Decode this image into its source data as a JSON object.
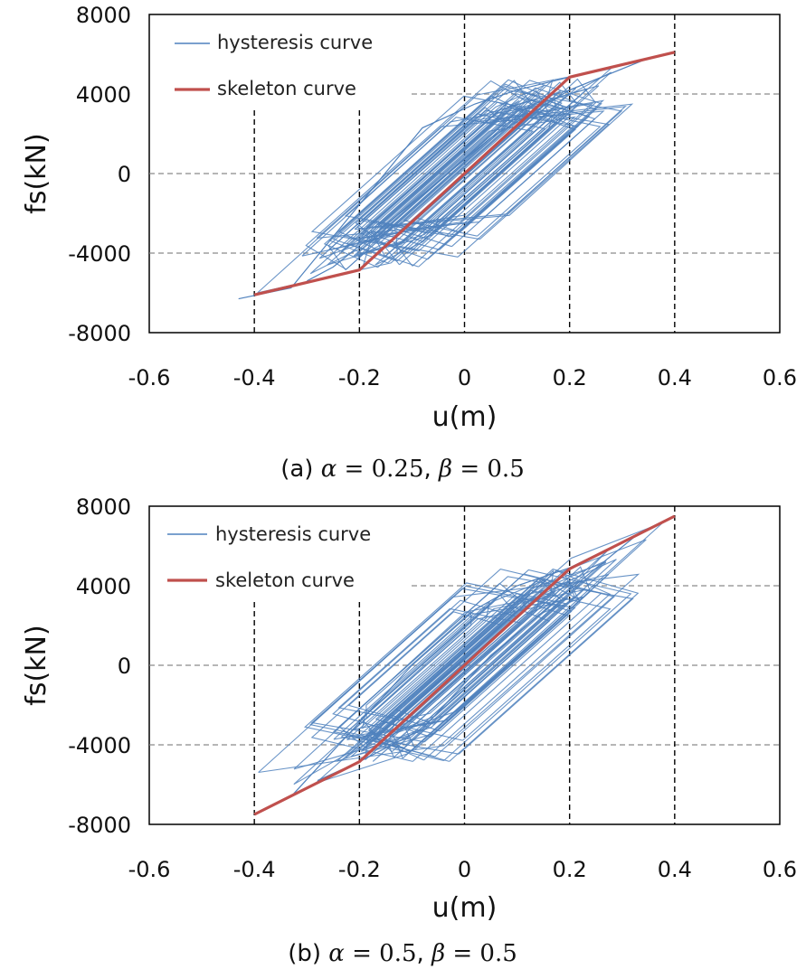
{
  "chart_data": [
    {
      "type": "line",
      "panel": "a",
      "xlabel": "u(m)",
      "ylabel": "fs(kN)",
      "xlim": [
        -0.6,
        0.6
      ],
      "ylim": [
        -8000,
        8000
      ],
      "xticks": [
        "-0.6",
        "-0.4",
        "-0.2",
        "0",
        "0.2",
        "0.4",
        "0.6"
      ],
      "yticks": [
        "8000",
        "4000",
        "0",
        "-4000",
        "-8000"
      ],
      "legend": [
        "hysteresis curve",
        "skeleton curve"
      ],
      "caption": {
        "label": "(a)",
        "alpha": "0.25",
        "beta": "0.5"
      },
      "series": [
        {
          "name": "skeleton curve",
          "color": "#c0504d",
          "points": [
            [
              -0.4,
              -6100
            ],
            [
              -0.2,
              -4850
            ],
            [
              0,
              0
            ],
            [
              0.2,
              4850
            ],
            [
              0.4,
              6100
            ]
          ]
        },
        {
          "name": "hysteresis curve",
          "color": "#4f81bd",
          "points": [
            [
              -0.43,
              -6300
            ],
            [
              -0.33,
              -5750
            ],
            [
              -0.08,
              2300
            ],
            [
              0.02,
              3500
            ],
            [
              0.1,
              4200
            ],
            [
              0.2,
              4850
            ],
            [
              0.35,
              5800
            ],
            [
              0.2,
              4200
            ],
            [
              0.05,
              1800
            ],
            [
              -0.1,
              -1500
            ],
            [
              -0.25,
              -4700
            ],
            [
              -0.3,
              -5400
            ]
          ]
        }
      ]
    },
    {
      "type": "line",
      "panel": "b",
      "xlabel": "u(m)",
      "ylabel": "fs(kN)",
      "xlim": [
        -0.6,
        0.6
      ],
      "ylim": [
        -8000,
        8000
      ],
      "xticks": [
        "-0.6",
        "-0.4",
        "-0.2",
        "0",
        "0.2",
        "0.4",
        "0.6"
      ],
      "yticks": [
        "8000",
        "4000",
        "0",
        "-4000",
        "-8000"
      ],
      "legend": [
        "hysteresis curve",
        "skeleton curve"
      ],
      "caption": {
        "label": "(b)",
        "alpha": "0.5",
        "beta": "0.5"
      },
      "series": [
        {
          "name": "skeleton curve",
          "color": "#c0504d",
          "points": [
            [
              -0.4,
              -7500
            ],
            [
              -0.2,
              -4850
            ],
            [
              0,
              0
            ],
            [
              0.2,
              4850
            ],
            [
              0.4,
              7500
            ]
          ]
        },
        {
          "name": "hysteresis curve",
          "color": "#4f81bd",
          "points": [
            [
              -0.4,
              -7500
            ],
            [
              -0.33,
              -6600
            ],
            [
              -0.1,
              0
            ],
            [
              0.02,
              2800
            ],
            [
              0.1,
              4000
            ],
            [
              0.2,
              4900
            ],
            [
              0.33,
              6600
            ],
            [
              0.2,
              3800
            ],
            [
              0.05,
              500
            ],
            [
              -0.08,
              -3200
            ],
            [
              -0.2,
              -4850
            ],
            [
              -0.28,
              -5800
            ]
          ]
        }
      ]
    }
  ]
}
